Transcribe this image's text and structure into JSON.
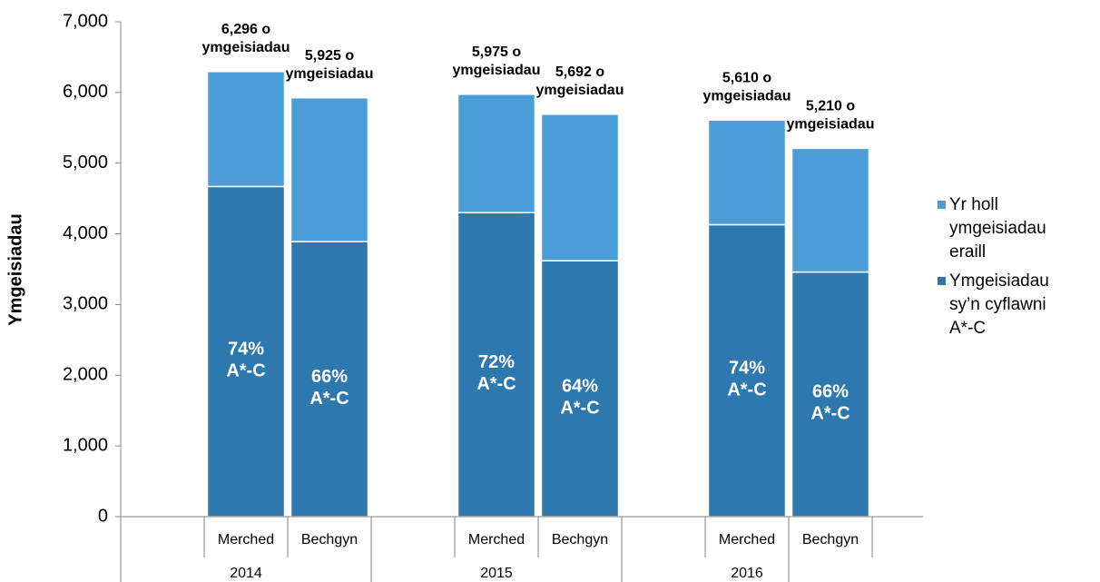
{
  "chart_data": {
    "type": "stacked_bar",
    "y_label": "Ymgeisiadau",
    "groups": [
      "2014",
      "2015",
      "2016"
    ],
    "categories": [
      "Merched",
      "Bechgyn",
      "Merched",
      "Bechgyn",
      "Merched",
      "Bechgyn"
    ],
    "series": [
      {
        "name": "Ymgeisiadau sy’n cyflawni A*-C",
        "color": "#2e78b0",
        "values": [
          4670,
          3890,
          4300,
          3620,
          4130,
          3460
        ]
      },
      {
        "name": "Yr holl ymgeisiadau eraill",
        "color": "#4a9dd6",
        "values": [
          1626,
          2035,
          1675,
          2072,
          1480,
          1750
        ]
      }
    ],
    "top_labels": [
      [
        "6,296 o",
        "ymgeisiadau"
      ],
      [
        "5,925 o",
        "ymgeisiadau"
      ],
      [
        "5,975 o",
        "ymgeisiadau"
      ],
      [
        "5,692 o",
        "ymgeisiadau"
      ],
      [
        "5,610 o",
        "ymgeisiadau"
      ],
      [
        "5,210 o",
        "ymgeisiadau"
      ]
    ],
    "inside_labels": [
      [
        "74%",
        "A*-C"
      ],
      [
        "66%",
        "A*-C"
      ],
      [
        "72%",
        "A*-C"
      ],
      [
        "64%",
        "A*-C"
      ],
      [
        "74%",
        "A*-C"
      ],
      [
        "66%",
        "A*-C"
      ]
    ],
    "ylim": [
      0,
      7000
    ],
    "yticks": [
      0,
      {
        "value": 1000,
        "label": "1,000"
      },
      {
        "value": 2000,
        "label": "2,000"
      },
      {
        "value": 3000,
        "label": "3,000"
      },
      {
        "value": 4000,
        "label": "4,000"
      },
      {
        "value": 5000,
        "label": "5,000"
      },
      {
        "value": 6000,
        "label": "6,000"
      },
      {
        "value": 7000,
        "label": "7,000"
      }
    ],
    "legend": "right"
  }
}
